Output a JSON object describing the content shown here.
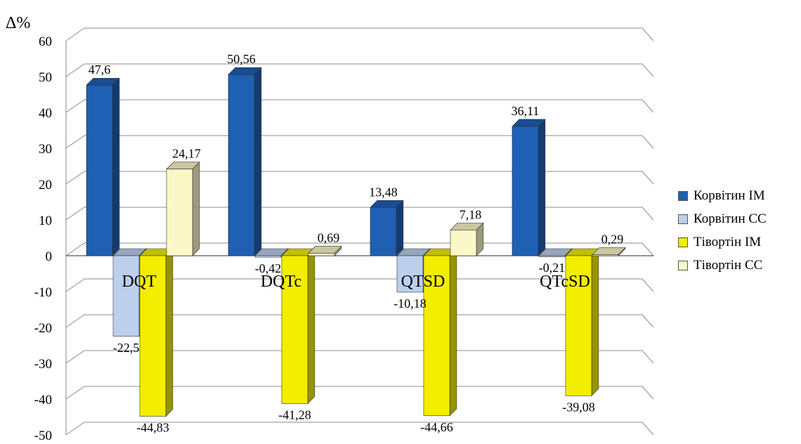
{
  "chart_data": {
    "type": "bar",
    "y_axis_title": "Δ%",
    "ylim": [
      -50,
      60
    ],
    "y_ticks": [
      "-50",
      "-40",
      "-30",
      "-20",
      "-10",
      "0",
      "10",
      "20",
      "30",
      "40",
      "50",
      "60"
    ],
    "categories": [
      "DQT",
      "DQTc",
      "QTSD",
      "QTcSD"
    ],
    "series": [
      {
        "name": "Корвітин ІМ",
        "color": "#1f5fb4",
        "values": [
          47.6,
          50.56,
          13.48,
          36.11
        ],
        "labels": [
          "47,6",
          "50,56",
          "13,48",
          "36,11"
        ]
      },
      {
        "name": "Корвітин СС",
        "color": "#bcd0ee",
        "values": [
          -22.5,
          -0.42,
          -10.18,
          -0.21
        ],
        "labels": [
          "-22,5",
          "-0,42",
          "-10,18",
          "-0,21"
        ]
      },
      {
        "name": "Тівортін ІМ",
        "color": "#f3ee00",
        "values": [
          -44.83,
          -41.28,
          -44.66,
          -39.08
        ],
        "labels": [
          "-44,83",
          "-41,28",
          "-44,66",
          "-39,08"
        ]
      },
      {
        "name": "Тівортін СС",
        "color": "#fbf8c8",
        "values": [
          24.17,
          0.69,
          7.18,
          0.29
        ],
        "labels": [
          "24,17",
          "0,69",
          "7,18",
          "0,29"
        ]
      }
    ],
    "grid": true,
    "legend_position": "right",
    "style": "3d-column"
  }
}
